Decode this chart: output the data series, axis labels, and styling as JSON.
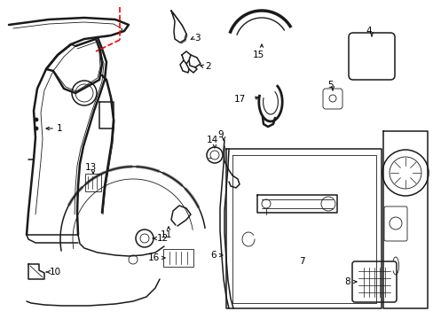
{
  "bg_color": "#ffffff",
  "line_color": "#1a1a1a",
  "dashed_color": "#ff0000",
  "lw_thick": 1.8,
  "lw_med": 1.1,
  "lw_thin": 0.6,
  "label_fontsize": 7.5,
  "figw": 4.89,
  "figh": 3.6,
  "dpi": 100
}
